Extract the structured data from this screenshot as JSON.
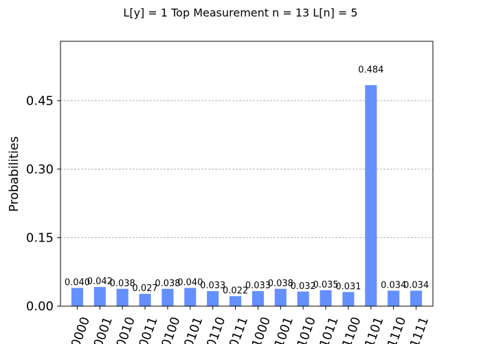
{
  "chart_data": {
    "type": "bar",
    "title": "L[y] = 1 Top Measurement n = 13 L[n] = 5",
    "xlabel": "",
    "ylabel": "Probabilities",
    "categories": [
      "0000",
      "0001",
      "0010",
      "0011",
      "0100",
      "0101",
      "0110",
      "0111",
      "1000",
      "1001",
      "1010",
      "1011",
      "1100",
      "1101",
      "1110",
      "1111"
    ],
    "values": [
      0.04,
      0.042,
      0.038,
      0.027,
      0.038,
      0.04,
      0.033,
      0.022,
      0.033,
      0.038,
      0.032,
      0.035,
      0.031,
      0.484,
      0.034,
      0.034
    ],
    "value_labels": [
      "0.040",
      "0.042",
      "0.038",
      "0.027",
      "0.038",
      "0.040",
      "0.033",
      "0.022",
      "0.033",
      "0.038",
      "0.032",
      "0.035",
      "0.031",
      "0.484",
      "0.034",
      "0.034"
    ],
    "yticks": [
      "0.00",
      "0.15",
      "0.30",
      "0.45"
    ],
    "ytick_values": [
      0.0,
      0.15,
      0.3,
      0.45
    ],
    "ylim": [
      0,
      0.58
    ],
    "grid": "horizontal dashed",
    "bar_color": "#648fff"
  }
}
